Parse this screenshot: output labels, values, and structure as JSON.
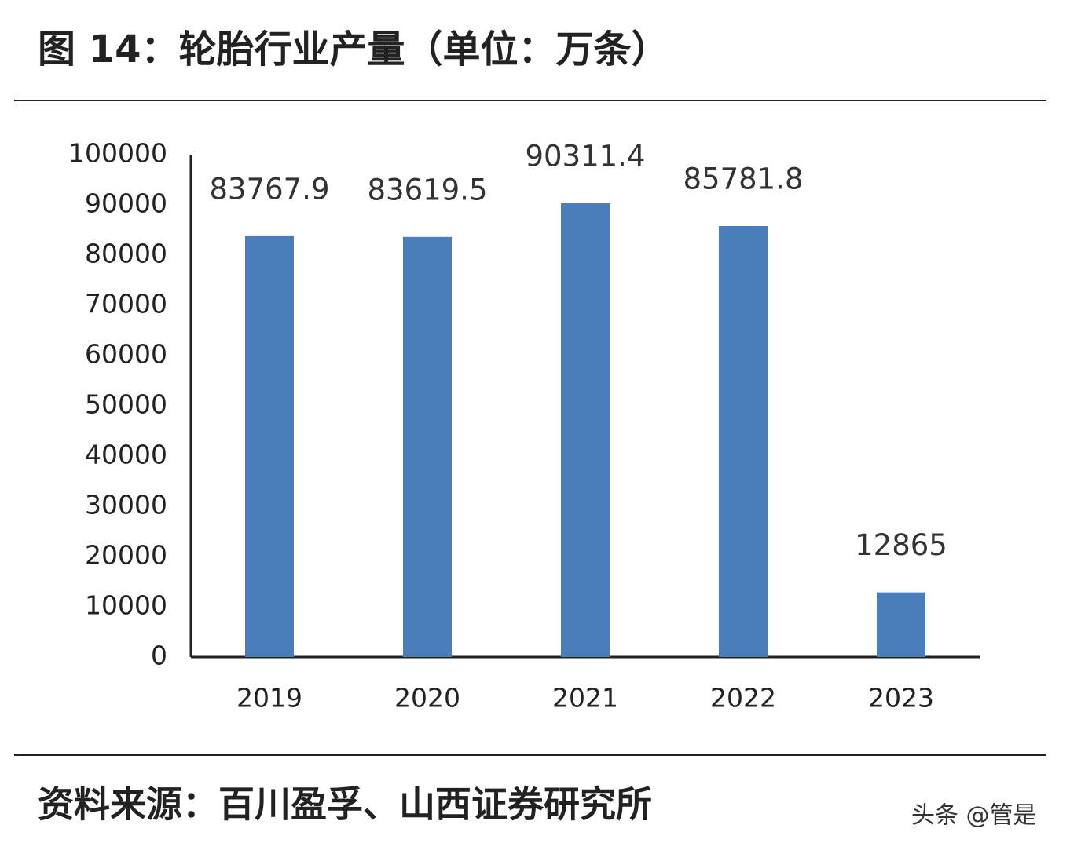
{
  "chart_data": {
    "type": "bar",
    "title": "图 14：轮胎行业产量（单位：万条）",
    "categories": [
      "2019",
      "2020",
      "2021",
      "2022",
      "2023"
    ],
    "values": [
      83767.9,
      83619.5,
      90311.4,
      85781.8,
      12865
    ],
    "color": "#4a7ebb",
    "ylim": [
      0,
      100000
    ],
    "yticks": [
      0,
      10000,
      20000,
      30000,
      40000,
      50000,
      60000,
      70000,
      80000,
      90000,
      100000
    ],
    "grid": false,
    "source": "资料来源：百川盈孚、山西证券研究所",
    "watermark": "头条 @管是"
  }
}
